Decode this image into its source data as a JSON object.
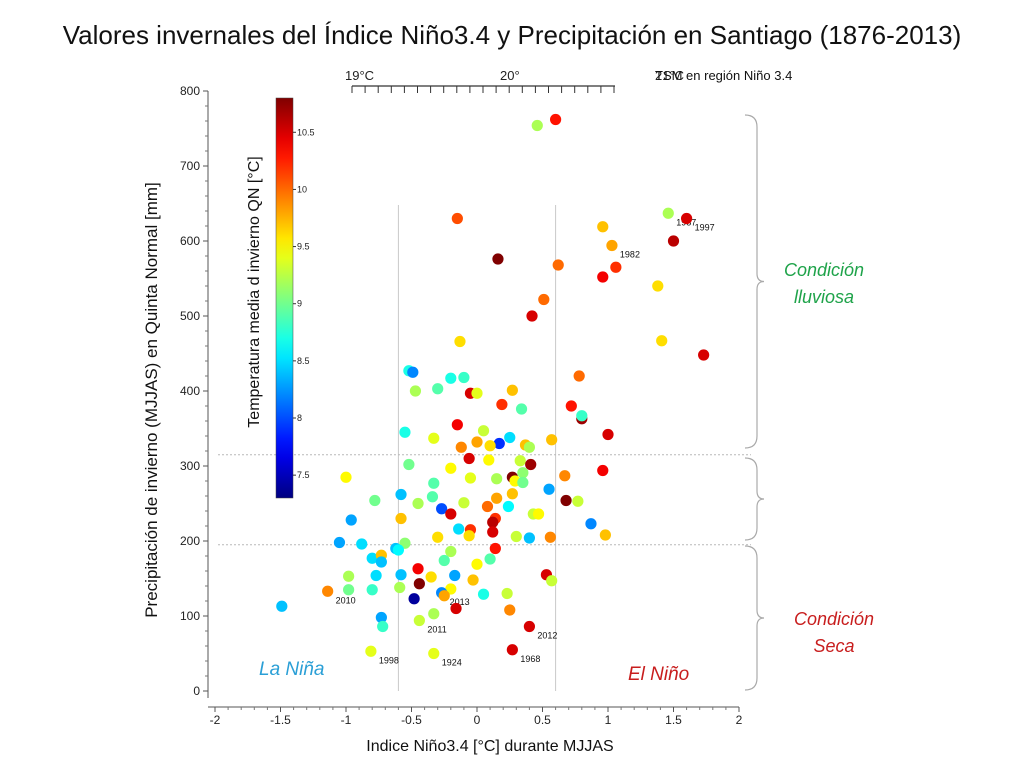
{
  "title": "Valores invernales del Índice Niño3.4 y Precipitación en Santiago (1876-2013)",
  "labels": {
    "y_axis": "Precipitación de invierno (MJJAS)  en Quinta Normal [mm]",
    "x_axis": "Indice Niño3.4 [°C] durante MJJAS",
    "colorbar": "Temperatura media d invierno QN [°C]",
    "sst_title": "TSM en región Niño 3.4",
    "sst_ticks": [
      "19°C",
      "20°",
      "21°C"
    ],
    "condition_wet": [
      "Condición",
      "lluviosa"
    ],
    "condition_dry": [
      "Condición",
      "Seca"
    ],
    "la_nina": "La Niña",
    "el_nino": "El Niño"
  },
  "colors": {
    "la_nina": "#2a9fd6",
    "el_nino": "#c81e1e",
    "wet": "#1fa34a",
    "dry": "#c81e1e",
    "grid": "#cccccc"
  },
  "chart_data": {
    "type": "scatter",
    "title": "Valores invernales del Índice Niño3.4 y Precipitación en Santiago (1876-2013)",
    "xlabel": "Indice Niño3.4 [°C] durante MJJAS",
    "ylabel": "Precipitación de invierno (MJJAS)  en Quinta Normal [mm]",
    "xlim": [
      -2,
      2
    ],
    "ylim": [
      0,
      800
    ],
    "xticks": [
      "-2",
      "-1.5",
      "-1",
      "-0.5",
      "0",
      "0.5",
      "1",
      "1.5",
      "2"
    ],
    "yticks": [
      "0",
      "100",
      "200",
      "300",
      "400",
      "500",
      "600",
      "700",
      "800"
    ],
    "reference_lines": {
      "x": [
        -0.6,
        0.6
      ],
      "y": [
        195,
        315
      ]
    },
    "colorbar": {
      "label": "Temperatura media d invierno QN [°C]",
      "range": [
        7.3,
        10.8
      ],
      "ticks": [
        "7.5",
        "8",
        "8.5",
        "9",
        "9.5",
        "10",
        "10.5"
      ]
    },
    "points": [
      {
        "x": 0.6,
        "y": 762,
        "c": 10.3
      },
      {
        "x": 0.46,
        "y": 754,
        "c": 9.2
      },
      {
        "x": 1.46,
        "y": 637,
        "c": 9.2,
        "label": "1987"
      },
      {
        "x": 1.6,
        "y": 630,
        "c": 10.5,
        "label": "1997"
      },
      {
        "x": 1.5,
        "y": 600,
        "c": 10.6
      },
      {
        "x": 1.03,
        "y": 594,
        "c": 9.8,
        "label": "1982"
      },
      {
        "x": 0.96,
        "y": 619,
        "c": 9.7
      },
      {
        "x": -0.15,
        "y": 630,
        "c": 10.1
      },
      {
        "x": 0.16,
        "y": 576,
        "c": 10.8
      },
      {
        "x": 0.62,
        "y": 568,
        "c": 10.0
      },
      {
        "x": 1.06,
        "y": 565,
        "c": 10.2
      },
      {
        "x": 0.96,
        "y": 552,
        "c": 10.4
      },
      {
        "x": 1.38,
        "y": 540,
        "c": 9.6
      },
      {
        "x": 0.51,
        "y": 522,
        "c": 10.0
      },
      {
        "x": 0.42,
        "y": 500,
        "c": 10.5
      },
      {
        "x": 1.41,
        "y": 467,
        "c": 9.6
      },
      {
        "x": 1.73,
        "y": 448,
        "c": 10.5
      },
      {
        "x": -0.13,
        "y": 466,
        "c": 9.6
      },
      {
        "x": -0.52,
        "y": 427,
        "c": 8.7
      },
      {
        "x": -0.49,
        "y": 425,
        "c": 8.2
      },
      {
        "x": -0.2,
        "y": 417,
        "c": 8.7
      },
      {
        "x": -0.1,
        "y": 418,
        "c": 8.8
      },
      {
        "x": -0.3,
        "y": 403,
        "c": 8.9
      },
      {
        "x": -0.47,
        "y": 400,
        "c": 9.2
      },
      {
        "x": -0.05,
        "y": 397,
        "c": 10.5
      },
      {
        "x": 0.0,
        "y": 397,
        "c": 9.4
      },
      {
        "x": 0.27,
        "y": 401,
        "c": 9.7
      },
      {
        "x": 0.19,
        "y": 382,
        "c": 10.2
      },
      {
        "x": 0.34,
        "y": 376,
        "c": 8.9
      },
      {
        "x": 0.78,
        "y": 420,
        "c": 10.0
      },
      {
        "x": 0.72,
        "y": 380,
        "c": 10.3
      },
      {
        "x": 0.8,
        "y": 363,
        "c": 10.7
      },
      {
        "x": 0.8,
        "y": 367,
        "c": 8.8
      },
      {
        "x": -0.15,
        "y": 355,
        "c": 10.4
      },
      {
        "x": -0.55,
        "y": 345,
        "c": 8.7
      },
      {
        "x": 0.05,
        "y": 347,
        "c": 9.3
      },
      {
        "x": 0.25,
        "y": 338,
        "c": 8.5
      },
      {
        "x": 0.17,
        "y": 330,
        "c": 7.9
      },
      {
        "x": 0.37,
        "y": 328,
        "c": 9.7
      },
      {
        "x": -0.33,
        "y": 337,
        "c": 9.4
      },
      {
        "x": 0.0,
        "y": 332,
        "c": 9.8
      },
      {
        "x": -0.12,
        "y": 325,
        "c": 9.9
      },
      {
        "x": 0.1,
        "y": 327,
        "c": 9.6
      },
      {
        "x": 0.57,
        "y": 335,
        "c": 9.7
      },
      {
        "x": 1.0,
        "y": 342,
        "c": 10.5
      },
      {
        "x": 0.4,
        "y": 325,
        "c": 9.2
      },
      {
        "x": -0.06,
        "y": 310,
        "c": 10.5
      },
      {
        "x": 0.09,
        "y": 308,
        "c": 9.5
      },
      {
        "x": 0.33,
        "y": 307,
        "c": 9.3
      },
      {
        "x": 0.41,
        "y": 302,
        "c": 10.7
      },
      {
        "x": -0.2,
        "y": 297,
        "c": 9.5
      },
      {
        "x": -0.52,
        "y": 302,
        "c": 9.0
      },
      {
        "x": 0.27,
        "y": 285,
        "c": 10.8
      },
      {
        "x": 0.35,
        "y": 291,
        "c": 9.1
      },
      {
        "x": 0.67,
        "y": 287,
        "c": 9.9
      },
      {
        "x": 0.96,
        "y": 294,
        "c": 10.4
      },
      {
        "x": -1.0,
        "y": 285,
        "c": 9.5
      },
      {
        "x": -0.33,
        "y": 277,
        "c": 8.9
      },
      {
        "x": -0.05,
        "y": 284,
        "c": 9.4
      },
      {
        "x": 0.15,
        "y": 283,
        "c": 9.2
      },
      {
        "x": 0.29,
        "y": 280,
        "c": 9.5
      },
      {
        "x": 0.35,
        "y": 278,
        "c": 9.0
      },
      {
        "x": -0.58,
        "y": 262,
        "c": 8.4
      },
      {
        "x": -0.34,
        "y": 259,
        "c": 8.9
      },
      {
        "x": -0.45,
        "y": 250,
        "c": 9.2
      },
      {
        "x": -0.1,
        "y": 251,
        "c": 9.3
      },
      {
        "x": 0.15,
        "y": 257,
        "c": 9.8
      },
      {
        "x": 0.27,
        "y": 263,
        "c": 9.7
      },
      {
        "x": 0.55,
        "y": 269,
        "c": 8.3
      },
      {
        "x": 0.68,
        "y": 254,
        "c": 10.8
      },
      {
        "x": 0.77,
        "y": 253,
        "c": 9.3
      },
      {
        "x": -0.78,
        "y": 254,
        "c": 9.0
      },
      {
        "x": -0.27,
        "y": 243,
        "c": 8.0
      },
      {
        "x": -0.2,
        "y": 236,
        "c": 10.5
      },
      {
        "x": 0.08,
        "y": 246,
        "c": 10.0
      },
      {
        "x": 0.24,
        "y": 246,
        "c": 8.6
      },
      {
        "x": 0.43,
        "y": 236,
        "c": 9.3
      },
      {
        "x": 0.47,
        "y": 236,
        "c": 9.5
      },
      {
        "x": -0.96,
        "y": 228,
        "c": 8.3
      },
      {
        "x": -0.58,
        "y": 230,
        "c": 9.7
      },
      {
        "x": 0.14,
        "y": 230,
        "c": 10.2
      },
      {
        "x": 0.12,
        "y": 225,
        "c": 10.6
      },
      {
        "x": -0.14,
        "y": 216,
        "c": 8.5
      },
      {
        "x": -0.05,
        "y": 215,
        "c": 10.2
      },
      {
        "x": 0.12,
        "y": 212,
        "c": 10.5
      },
      {
        "x": 0.87,
        "y": 223,
        "c": 8.2
      },
      {
        "x": -0.3,
        "y": 205,
        "c": 9.6
      },
      {
        "x": 0.4,
        "y": 204,
        "c": 8.4
      },
      {
        "x": -0.06,
        "y": 207,
        "c": 9.6
      },
      {
        "x": 0.3,
        "y": 206,
        "c": 9.3
      },
      {
        "x": 0.56,
        "y": 205,
        "c": 9.9
      },
      {
        "x": 0.98,
        "y": 208,
        "c": 9.7
      },
      {
        "x": -1.05,
        "y": 198,
        "c": 8.3
      },
      {
        "x": -0.88,
        "y": 196,
        "c": 8.5
      },
      {
        "x": -0.55,
        "y": 197,
        "c": 9.1
      },
      {
        "x": -0.62,
        "y": 190,
        "c": 8.4
      },
      {
        "x": -0.6,
        "y": 188,
        "c": 8.6
      },
      {
        "x": -0.2,
        "y": 186,
        "c": 9.2
      },
      {
        "x": 0.14,
        "y": 190,
        "c": 10.3
      },
      {
        "x": -0.8,
        "y": 177,
        "c": 8.5
      },
      {
        "x": -0.73,
        "y": 181,
        "c": 9.7
      },
      {
        "x": -0.73,
        "y": 172,
        "c": 8.4
      },
      {
        "x": -0.25,
        "y": 174,
        "c": 8.9
      },
      {
        "x": 0.0,
        "y": 169,
        "c": 9.5
      },
      {
        "x": 0.1,
        "y": 176,
        "c": 8.9
      },
      {
        "x": -0.45,
        "y": 163,
        "c": 10.4
      },
      {
        "x": -0.58,
        "y": 155,
        "c": 8.4
      },
      {
        "x": -0.77,
        "y": 154,
        "c": 8.5
      },
      {
        "x": -0.35,
        "y": 152,
        "c": 9.6
      },
      {
        "x": -0.17,
        "y": 154,
        "c": 8.3
      },
      {
        "x": 0.53,
        "y": 155,
        "c": 10.5
      },
      {
        "x": 0.57,
        "y": 147,
        "c": 9.3
      },
      {
        "x": -0.98,
        "y": 153,
        "c": 9.2
      },
      {
        "x": -0.44,
        "y": 143,
        "c": 10.8
      },
      {
        "x": -0.8,
        "y": 135,
        "c": 8.8
      },
      {
        "x": -0.98,
        "y": 135,
        "c": 9.0
      },
      {
        "x": -1.14,
        "y": 133,
        "c": 9.9,
        "label": "2010"
      },
      {
        "x": -0.2,
        "y": 136,
        "c": 9.5
      },
      {
        "x": -0.03,
        "y": 148,
        "c": 9.7
      },
      {
        "x": -0.59,
        "y": 138,
        "c": 9.2
      },
      {
        "x": -0.27,
        "y": 131,
        "c": 8.2,
        "label": "2013"
      },
      {
        "x": 0.05,
        "y": 129,
        "c": 8.7
      },
      {
        "x": 0.23,
        "y": 130,
        "c": 9.3
      },
      {
        "x": -0.25,
        "y": 127,
        "c": 9.8
      },
      {
        "x": -0.48,
        "y": 123,
        "c": 7.4
      },
      {
        "x": -0.16,
        "y": 110,
        "c": 10.5
      },
      {
        "x": 0.25,
        "y": 108,
        "c": 9.9
      },
      {
        "x": -1.49,
        "y": 113,
        "c": 8.4
      },
      {
        "x": -0.33,
        "y": 103,
        "c": 9.2
      },
      {
        "x": -0.44,
        "y": 94,
        "c": 9.3,
        "label": "2011"
      },
      {
        "x": -0.73,
        "y": 98,
        "c": 8.3
      },
      {
        "x": -0.72,
        "y": 86,
        "c": 8.8
      },
      {
        "x": 0.4,
        "y": 86,
        "c": 10.5,
        "label": "2012"
      },
      {
        "x": -0.81,
        "y": 53,
        "c": 9.4,
        "label": "1998"
      },
      {
        "x": -0.33,
        "y": 50,
        "c": 9.4,
        "label": "1924"
      },
      {
        "x": 0.27,
        "y": 55,
        "c": 10.5,
        "label": "1968"
      }
    ]
  }
}
